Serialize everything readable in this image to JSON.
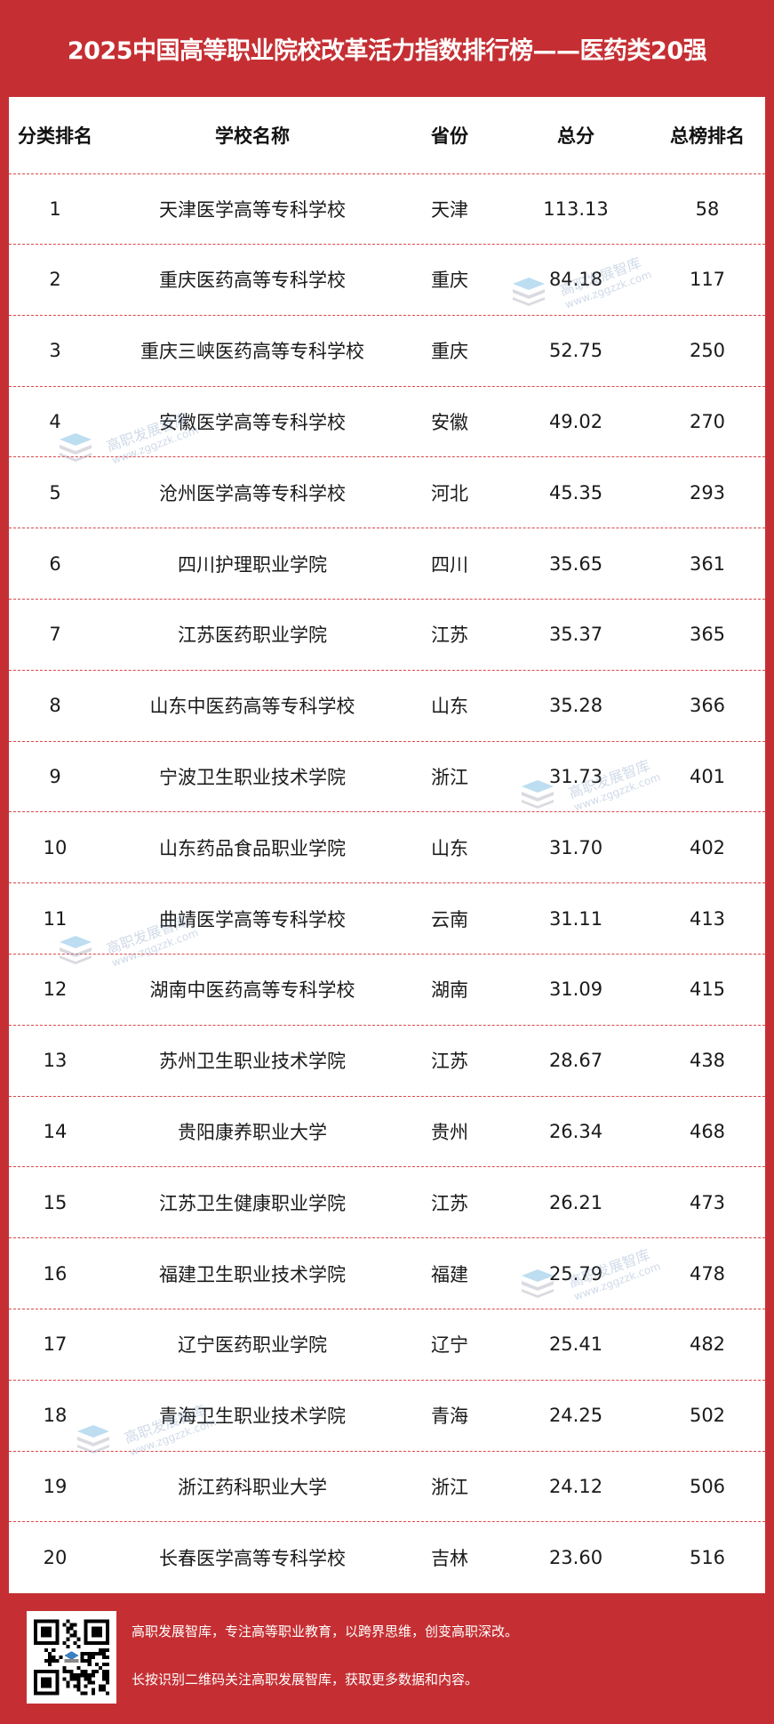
{
  "title": "2025中国高等职业院校改革活力指数排行榜——医药类20强",
  "columns": [
    "分类排名",
    "学校名称",
    "省份",
    "总分",
    "总榜排名"
  ],
  "rows": [
    [
      "1",
      "天津医学高等专科学校",
      "天津",
      "113.13",
      "58"
    ],
    [
      "2",
      "重庆医药高等专科学校",
      "重庆",
      "84.18",
      "117"
    ],
    [
      "3",
      "重庆三峡医药高等专科学校",
      "重庆",
      "52.75",
      "250"
    ],
    [
      "4",
      "安徽医学高等专科学校",
      "安徽",
      "49.02",
      "270"
    ],
    [
      "5",
      "沧州医学高等专科学校",
      "河北",
      "45.35",
      "293"
    ],
    [
      "6",
      "四川护理职业学院",
      "四川",
      "35.65",
      "361"
    ],
    [
      "7",
      "江苏医药职业学院",
      "江苏",
      "35.37",
      "365"
    ],
    [
      "8",
      "山东中医药高等专科学校",
      "山东",
      "35.28",
      "366"
    ],
    [
      "9",
      "宁波卫生职业技术学院",
      "浙江",
      "31.73",
      "401"
    ],
    [
      "10",
      "山东药品食品职业学院",
      "山东",
      "31.70",
      "402"
    ],
    [
      "11",
      "曲靖医学高等专科学校",
      "云南",
      "31.11",
      "413"
    ],
    [
      "12",
      "湖南中医药高等专科学校",
      "湖南",
      "31.09",
      "415"
    ],
    [
      "13",
      "苏州卫生职业技术学院",
      "江苏",
      "28.67",
      "438"
    ],
    [
      "14",
      "贵阳康养职业大学",
      "贵州",
      "26.34",
      "468"
    ],
    [
      "15",
      "江苏卫生健康职业学院",
      "江苏",
      "26.21",
      "473"
    ],
    [
      "16",
      "福建卫生职业技术学院",
      "福建",
      "25.79",
      "478"
    ],
    [
      "17",
      "辽宁医药职业学院",
      "辽宁",
      "25.41",
      "482"
    ],
    [
      "18",
      "青海卫生职业技术学院",
      "青海",
      "24.25",
      "502"
    ],
    [
      "19",
      "浙江药科职业大学",
      "浙江",
      "24.12",
      "506"
    ],
    [
      "20",
      "长春医学高等专科学校",
      "吉林",
      "23.60",
      "516"
    ]
  ],
  "watermark": {
    "name": "高职发展智库",
    "url": "www.zggzzk.com"
  },
  "footer": {
    "line1": "高职发展智库，专注高等职业教育，以跨界思维，创变高职深改。",
    "line2": "长按识别二维码关注高职发展智库，获取更多数据和内容。"
  },
  "colors": {
    "brand_red": "#c52f33",
    "divider": "#d9464a"
  }
}
